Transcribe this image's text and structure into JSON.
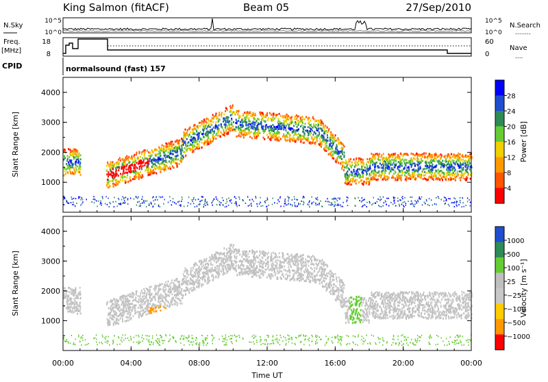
{
  "header": {
    "station": "King Salmon (fitACF)",
    "beam": "Beam 05",
    "date": "27/Sep/2010"
  },
  "noise_panel": {
    "left_label": "N.Sky",
    "right_label": "N.Search",
    "right_legend_dots": "........",
    "left_ticks": [
      "10^5",
      "10^0"
    ],
    "right_ticks": [
      "10^5",
      "10^0"
    ]
  },
  "freq_panel": {
    "left_label_1": "Freq.",
    "left_label_2": "[MHz]",
    "right_label": "Nave",
    "right_legend_dots": "....",
    "left_ticks": [
      "18",
      "8"
    ],
    "right_ticks": [
      "60",
      "0"
    ]
  },
  "cpid_panel": {
    "label": "CPID",
    "mode": "normalsound (fast) 157"
  },
  "colors": {
    "power_scale": [
      "#0000ff",
      "#1f4fd0",
      "#2e8b57",
      "#66cc33",
      "#f0d000",
      "#ff9900",
      "#ff5500",
      "#ff0000"
    ],
    "velocity_scale": [
      "#1f4fd0",
      "#2e8b57",
      "#66cc33",
      "#bfbfbf",
      "#c8c8c8",
      "#ffcc00",
      "#ff9900",
      "#ff0000"
    ]
  },
  "chart_data": [
    {
      "type": "heatmap",
      "name": "power",
      "ylabel": "Slant Range [km]",
      "yticks": [
        "1000",
        "2000",
        "3000",
        "4000"
      ],
      "ylim": [
        0,
        4500
      ],
      "colorbar_label": "Power [dB]",
      "colorbar_ticks": [
        "28",
        "24",
        "20",
        "16",
        "12",
        "8",
        "4"
      ],
      "colorbar_range": [
        0,
        32
      ]
    },
    {
      "type": "heatmap",
      "name": "velocity",
      "ylabel": "Slant Range [km]",
      "yticks": [
        "1000",
        "2000",
        "3000",
        "4000"
      ],
      "ylim": [
        0,
        4500
      ],
      "colorbar_label": "Velocity [m s⁻¹]",
      "colorbar_ticks": [
        "1000",
        "500",
        "100",
        "25",
        "−25",
        "−100",
        "−500",
        "−1000"
      ]
    }
  ],
  "time_axis": {
    "xlabel": "Time UT",
    "ticks": [
      "00:00",
      "04:00",
      "08:00",
      "12:00",
      "16:00",
      "20:00",
      "00:00"
    ],
    "xlim_hours": [
      0,
      24
    ]
  }
}
